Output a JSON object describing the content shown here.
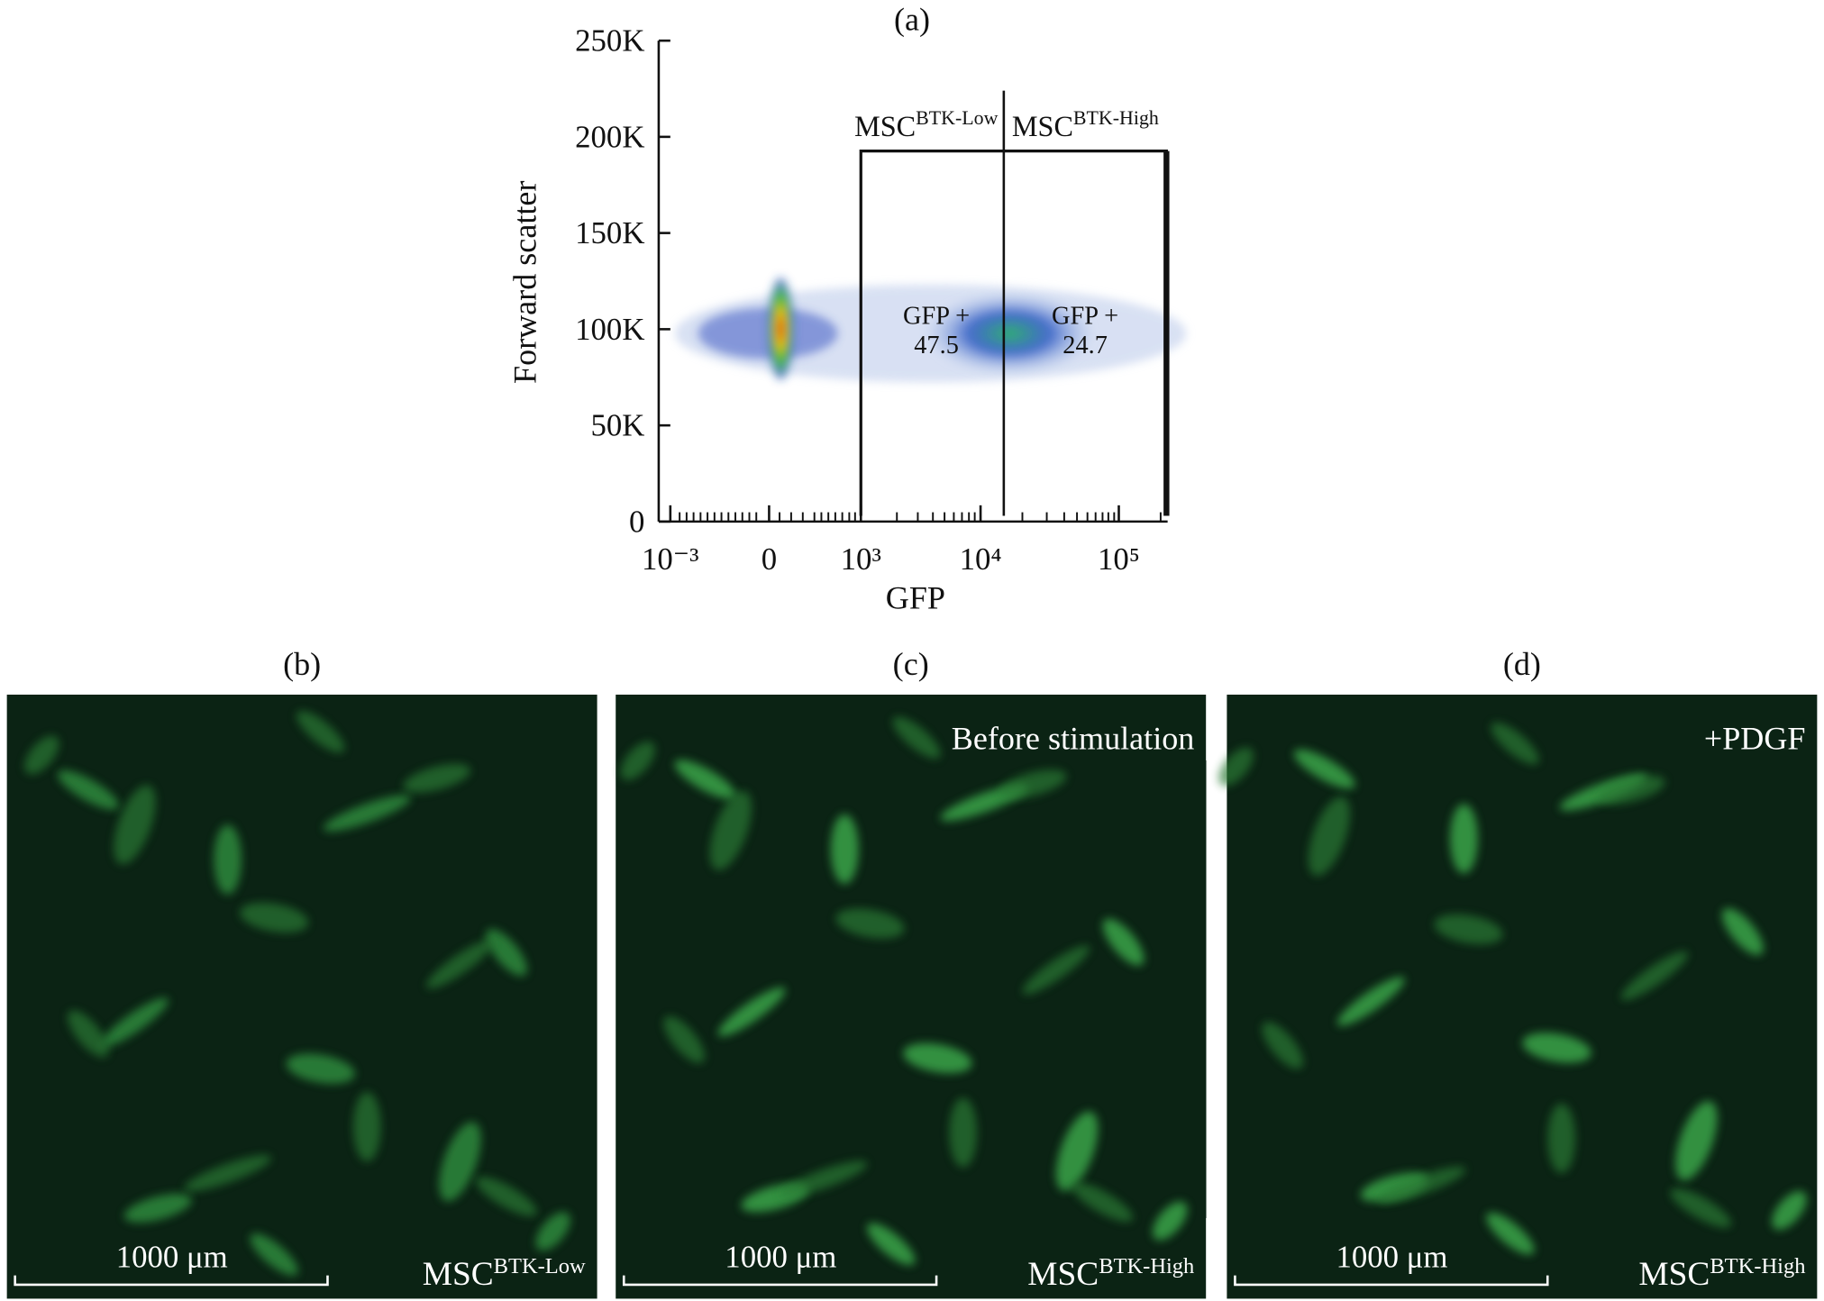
{
  "panel_a": {
    "label": "(a)",
    "y_label": "Forward scatter",
    "x_label": "GFP",
    "ylim": [
      0,
      250000
    ],
    "yticks": [
      0,
      {
        "value": 50000,
        "label": "50K"
      },
      {
        "value": 100000,
        "label": "100K"
      },
      {
        "value": 150000,
        "label": "150K"
      },
      {
        "value": 200000,
        "label": "200K"
      },
      {
        "value": 250000,
        "label": "250K"
      }
    ],
    "xtick_labels": [
      "10⁻³",
      "0",
      "10³",
      "10⁴",
      "10⁵"
    ],
    "gates": [
      {
        "name": {
          "base": "MSC",
          "sup": "BTK-Low"
        },
        "text": "GFP +",
        "percent": 47.5
      },
      {
        "name": {
          "base": "MSC",
          "sup": "BTK-High"
        },
        "text": "GFP +",
        "percent": 24.7
      }
    ]
  },
  "panels": [
    {
      "label": "(b)",
      "scale_bar": "1000 μm",
      "caption": {
        "base": "MSC",
        "sup": "BTK-Low"
      }
    },
    {
      "label": "(c)",
      "scale_bar": "1000 μm",
      "caption": {
        "base": "MSC",
        "sup": "BTK-High"
      },
      "note": "Before stimulation"
    },
    {
      "label": "(d)",
      "scale_bar": "1000 μm",
      "caption": {
        "base": "MSC",
        "sup": "BTK-High"
      },
      "note": "+PDGF"
    }
  ]
}
